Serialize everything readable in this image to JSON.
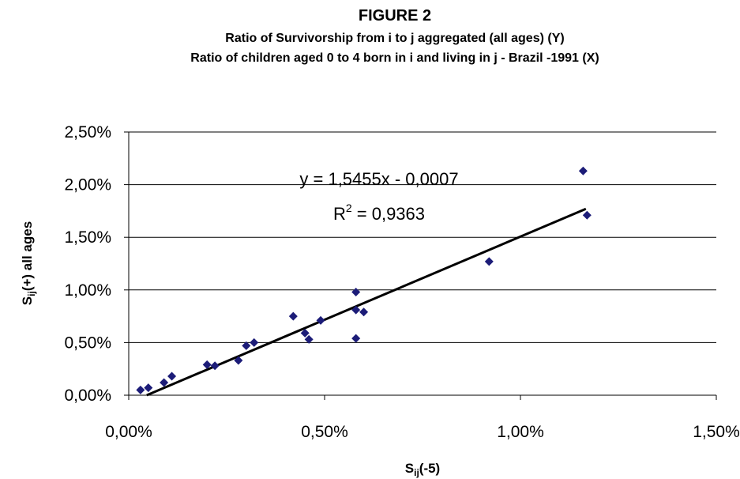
{
  "chart_data": {
    "type": "scatter",
    "title": "FIGURE  2",
    "subtitle": [
      "Ratio of Survivorship from i to j aggregated (all ages) (Y)",
      "Ratio of children aged 0 to 4 born in i and living in j -  Brazil -1991 (X)"
    ],
    "x_label": {
      "main": "S",
      "sub": "ij",
      "rest": "(-5)"
    },
    "y_label": {
      "main": "S",
      "sub": "ij",
      "rest": "(+) all ages"
    },
    "x": [
      0.03,
      0.05,
      0.09,
      0.11,
      0.2,
      0.22,
      0.28,
      0.3,
      0.32,
      0.42,
      0.45,
      0.46,
      0.49,
      0.58,
      0.58,
      0.58,
      0.6,
      0.92,
      1.16,
      1.17
    ],
    "values": [
      0.05,
      0.07,
      0.12,
      0.18,
      0.29,
      0.28,
      0.33,
      0.47,
      0.5,
      0.75,
      0.59,
      0.53,
      0.71,
      0.54,
      0.98,
      0.81,
      0.79,
      1.27,
      2.13,
      1.71
    ],
    "color": "#1c1c78",
    "trendline": {
      "x": [
        0.046,
        1.167
      ],
      "y": [
        0,
        1.77
      ],
      "color": "#000000"
    },
    "equation": "y = 1,5455x - 0,0007",
    "r_squared": {
      "main": "R",
      "sup": "2",
      "rest": " = 0,9363"
    },
    "xlim": [
      0,
      1.5
    ],
    "xticks": [
      {
        "value": 0,
        "label": "0,00%"
      },
      {
        "value": 0.5,
        "label": "0,50%"
      },
      {
        "value": 1,
        "label": "1,00%"
      },
      {
        "value": 1.5,
        "label": "1,50%"
      }
    ],
    "ylim": [
      0,
      2.5
    ],
    "yticks": [
      {
        "value": 0,
        "label": "0,00%"
      },
      {
        "value": 0.5,
        "label": "0,50%"
      },
      {
        "value": 1,
        "label": "1,00%"
      },
      {
        "value": 1.5,
        "label": "1,50%"
      },
      {
        "value": 2,
        "label": "2,00%"
      },
      {
        "value": 2.5,
        "label": "2,50%"
      }
    ],
    "grid": true
  }
}
